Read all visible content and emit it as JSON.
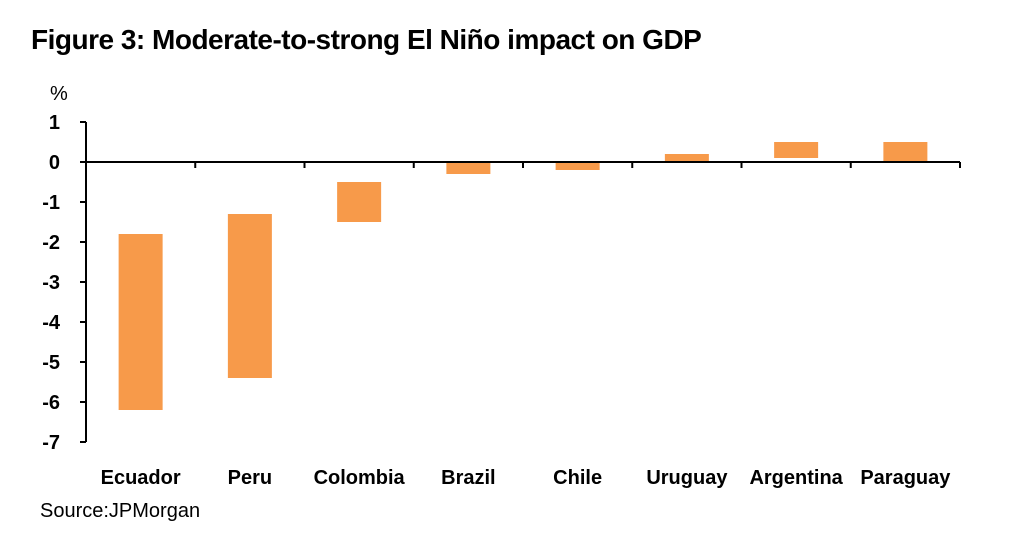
{
  "chart_data": {
    "type": "bar",
    "title": "Figure 3: Moderate-to-strong El Niño impact on GDP",
    "ylabel": "%",
    "xlabel": "",
    "ylim": [
      -7,
      1
    ],
    "yticks": [
      1,
      0,
      -1,
      -2,
      -3,
      -4,
      -5,
      -6,
      -7
    ],
    "grid": false,
    "bar_color": "#F79A4A",
    "categories": [
      "Ecuador",
      "Peru",
      "Colombia",
      "Brazil",
      "Chile",
      "Uruguay",
      "Argentina",
      "Paraguay"
    ],
    "ranges": [
      [
        -6.2,
        -1.8
      ],
      [
        -5.4,
        -1.3
      ],
      [
        -1.5,
        -0.5
      ],
      [
        -0.3,
        0.0
      ],
      [
        -0.2,
        0.0
      ],
      [
        0.0,
        0.2
      ],
      [
        0.1,
        0.5
      ],
      [
        0.0,
        0.5
      ]
    ],
    "source": "Source:JPMorgan"
  }
}
